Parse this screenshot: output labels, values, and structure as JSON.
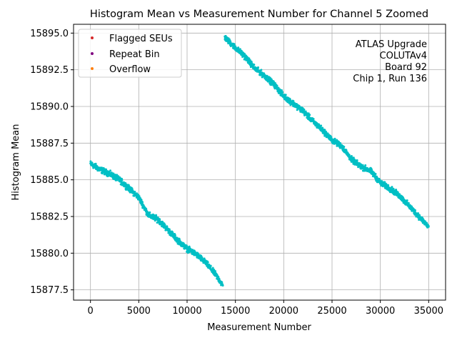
{
  "chart_data": {
    "type": "scatter",
    "title": "Histogram Mean vs Measurement Number for Channel 5 Zoomed",
    "xlabel": "Measurement Number",
    "ylabel": "Histogram Mean",
    "xlim": [
      -1750,
      36750
    ],
    "ylim": [
      15876.8,
      15895.6
    ],
    "xticks": [
      0,
      5000,
      10000,
      15000,
      20000,
      25000,
      30000,
      35000
    ],
    "xtick_labels": [
      "0",
      "5000",
      "10000",
      "15000",
      "20000",
      "25000",
      "30000",
      "35000"
    ],
    "yticks": [
      15877.5,
      15880.0,
      15882.5,
      15885.0,
      15887.5,
      15890.0,
      15892.5,
      15895.0
    ],
    "ytick_labels": [
      "15877.5",
      "15880.0",
      "15882.5",
      "15885.0",
      "15887.5",
      "15890.0",
      "15892.5",
      "15895.0"
    ],
    "grid": true,
    "legend_position": "top-left",
    "legend": [
      {
        "label": "Flagged SEUs",
        "color": "#d62728"
      },
      {
        "label": "Repeat Bin",
        "color": "#800080"
      },
      {
        "label": "Overflow",
        "color": "#ff7f0e"
      }
    ],
    "annotation": [
      "ATLAS Upgrade",
      "COLUTAv4",
      "Board 92",
      "Chip 1, Run 136"
    ],
    "series": [
      {
        "name": "Histogram Mean",
        "color": "#00bfc4",
        "segments": [
          {
            "x": [
              0,
              1000,
              2000,
              3000,
              4000,
              5000,
              6000,
              7000,
              8000,
              9000,
              10000,
              11000,
              12000,
              13000,
              13700
            ],
            "y": [
              15886.1,
              15885.7,
              15885.4,
              15885.0,
              15884.4,
              15883.8,
              15882.6,
              15882.3,
              15881.6,
              15880.9,
              15880.3,
              15879.9,
              15879.3,
              15878.5,
              15877.8
            ]
          },
          {
            "x": [
              13900,
              15000,
              16000,
              17000,
              18000,
              19000,
              20000,
              21000,
              22000,
              23000,
              24000,
              25000,
              26000,
              27000,
              28000,
              29000,
              30000,
              31000,
              32000,
              33000,
              34000,
              35000
            ],
            "y": [
              15894.7,
              15894.0,
              15893.4,
              15892.6,
              15892.1,
              15891.5,
              15890.7,
              15890.2,
              15889.7,
              15889.0,
              15888.4,
              15887.7,
              15887.3,
              15886.4,
              15885.9,
              15885.6,
              15884.8,
              15884.4,
              15883.9,
              15883.2,
              15882.5,
              15881.8
            ]
          }
        ]
      }
    ]
  }
}
